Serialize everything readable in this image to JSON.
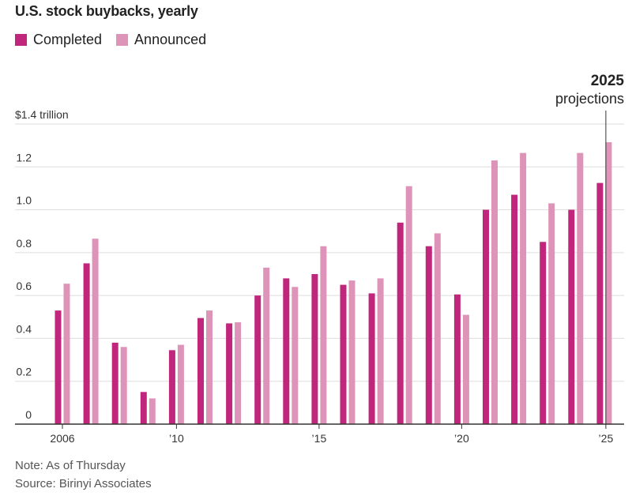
{
  "title": "U.S. stock buybacks, yearly",
  "legend": {
    "completed": "Completed",
    "announced": "Announced"
  },
  "colors": {
    "completed": "#c0267b",
    "announced": "#de94b8",
    "grid": "#dddddd",
    "axis": "#333333",
    "text": "#333333"
  },
  "annotation": {
    "year": "2025",
    "label": "projections"
  },
  "notes": {
    "note": "Note: As of Thursday",
    "source": "Source: Birinyi Associates"
  },
  "chart_data": {
    "type": "bar",
    "title": "U.S. stock buybacks, yearly",
    "ylabel": "$ trillion",
    "ylim": [
      0,
      1.4
    ],
    "yticks": [
      {
        "value": 0,
        "label": "0"
      },
      {
        "value": 0.2,
        "label": "0.2"
      },
      {
        "value": 0.4,
        "label": "0.4"
      },
      {
        "value": 0.6,
        "label": "0.6"
      },
      {
        "value": 0.8,
        "label": "0.8"
      },
      {
        "value": 1.0,
        "label": "1.0"
      },
      {
        "value": 1.2,
        "label": "1.2"
      },
      {
        "value": 1.4,
        "label": "$1.4 trillion"
      }
    ],
    "xticks": [
      {
        "year": 2006,
        "label": "2006"
      },
      {
        "year": 2010,
        "label": "’10"
      },
      {
        "year": 2015,
        "label": "’15"
      },
      {
        "year": 2020,
        "label": "’20"
      },
      {
        "year": 2025,
        "label": "’25"
      }
    ],
    "categories": [
      2006,
      2007,
      2008,
      2009,
      2010,
      2011,
      2012,
      2013,
      2014,
      2015,
      2016,
      2017,
      2018,
      2019,
      2020,
      2021,
      2022,
      2023,
      2024,
      2025
    ],
    "series": [
      {
        "name": "Completed",
        "values": [
          0.53,
          0.75,
          0.38,
          0.15,
          0.345,
          0.495,
          0.47,
          0.6,
          0.68,
          0.7,
          0.65,
          0.61,
          0.94,
          0.83,
          0.605,
          1.0,
          1.07,
          0.85,
          1.0,
          1.125
        ]
      },
      {
        "name": "Announced",
        "values": [
          0.655,
          0.865,
          0.36,
          0.12,
          0.37,
          0.53,
          0.475,
          0.73,
          0.64,
          0.83,
          0.67,
          0.68,
          1.11,
          0.89,
          0.51,
          1.23,
          1.265,
          1.03,
          1.265,
          1.315
        ]
      }
    ]
  }
}
